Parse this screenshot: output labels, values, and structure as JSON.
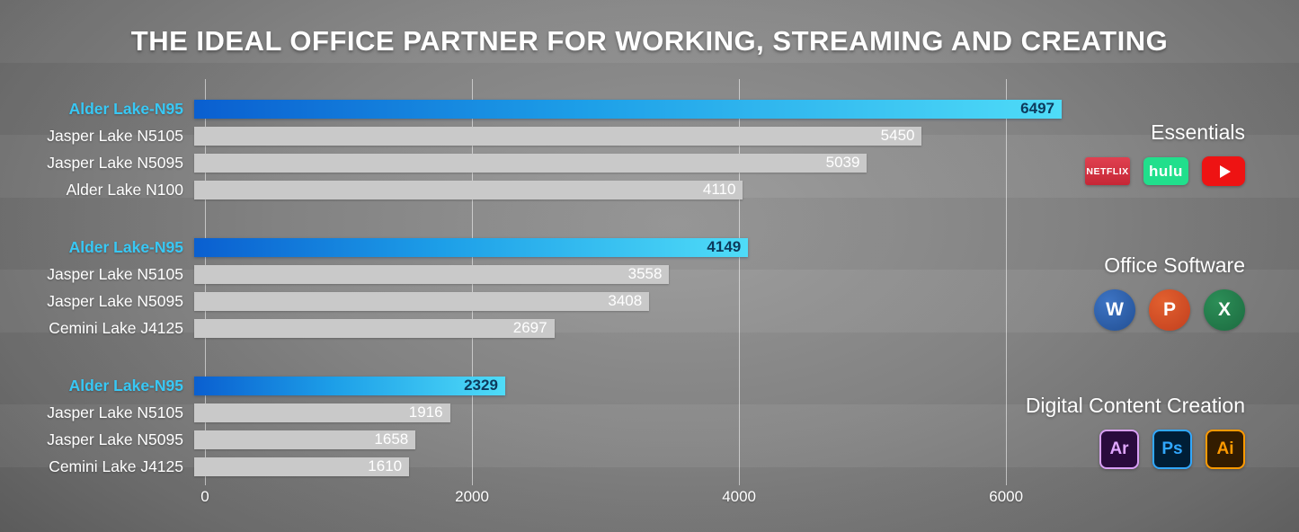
{
  "title": "THE IDEAL OFFICE PARTNER FOR WORKING, STREAMING AND CREATING",
  "chart_data": {
    "type": "bar",
    "orientation": "horizontal",
    "title": "THE IDEAL OFFICE PARTNER FOR WORKING, STREAMING AND CREATING",
    "xlim": [
      0,
      6800
    ],
    "x_ticks": [
      0,
      2000,
      4000,
      6000
    ],
    "grid": true,
    "highlight_series": "Alder Lake-N95",
    "groups": [
      {
        "name": "Essentials",
        "rows": [
          {
            "label": "Alder Lake-N95",
            "value": 6497,
            "highlight": true
          },
          {
            "label": "Jasper Lake N5105",
            "value": 5450,
            "highlight": false
          },
          {
            "label": "Jasper Lake N5095",
            "value": 5039,
            "highlight": false
          },
          {
            "label": "Alder Lake N100",
            "value": 4110,
            "highlight": false
          }
        ]
      },
      {
        "name": "Office Software",
        "rows": [
          {
            "label": "Alder Lake-N95",
            "value": 4149,
            "highlight": true
          },
          {
            "label": "Jasper Lake N5105",
            "value": 3558,
            "highlight": false
          },
          {
            "label": "Jasper Lake N5095",
            "value": 3408,
            "highlight": false
          },
          {
            "label": "Cemini Lake J4125",
            "value": 2697,
            "highlight": false
          }
        ]
      },
      {
        "name": "Digital Content Creation",
        "rows": [
          {
            "label": "Alder Lake-N95",
            "value": 2329,
            "highlight": true
          },
          {
            "label": "Jasper Lake N5105",
            "value": 1916,
            "highlight": false
          },
          {
            "label": "Jasper Lake N5095",
            "value": 1658,
            "highlight": false
          },
          {
            "label": "Cemini Lake J4125",
            "value": 1610,
            "highlight": false
          }
        ]
      }
    ]
  },
  "legend": {
    "sections": [
      {
        "title": "Essentials"
      },
      {
        "title": "Office Software"
      },
      {
        "title": "Digital Content Creation"
      }
    ]
  },
  "icons": {
    "netflix": "NETFLIX",
    "hulu": "hulu",
    "word": "W",
    "powerpoint": "P",
    "excel": "X",
    "aero": "Ar",
    "photoshop": "Ps",
    "illustrator": "Ai"
  },
  "colors": {
    "highlight_bar_start": "#0a5fd0",
    "highlight_bar_end": "#4fdcf8",
    "highlight_label": "#38c8f5",
    "bar": "#c9c9c9",
    "value_on_gray": "#ffffff",
    "value_on_highlight": "#0d3a5c"
  }
}
